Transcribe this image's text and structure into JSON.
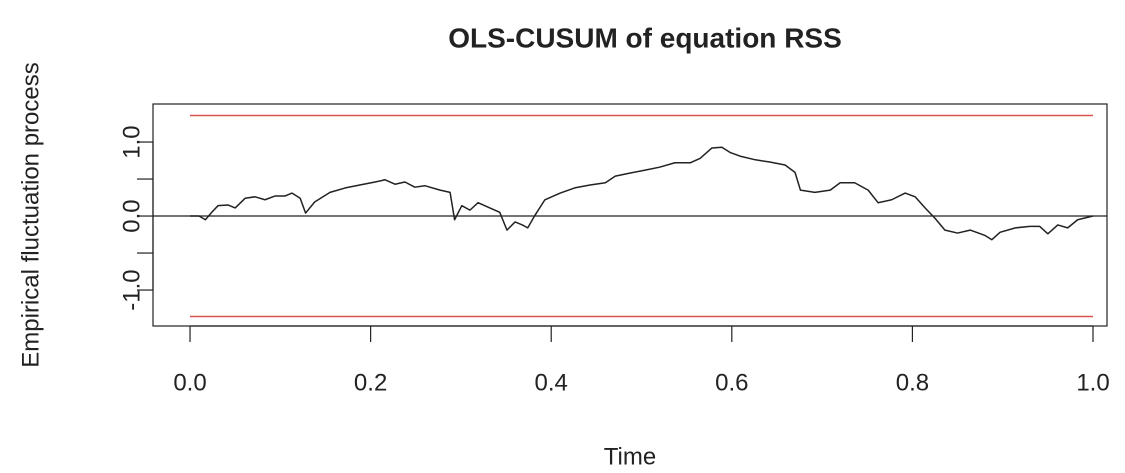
{
  "chart_data": {
    "type": "line",
    "title": "OLS-CUSUM of equation RSS",
    "x_label": "Time",
    "y_label": "Empirical fluctuation process",
    "xlim": [
      -0.041,
      1.0155
    ],
    "ylim": [
      -1.486,
      1.514
    ],
    "xticks": [
      {
        "value": 0,
        "label": "0.0"
      },
      {
        "value": 0.2,
        "label": "0.2"
      },
      {
        "value": 0.4,
        "label": "0.4"
      },
      {
        "value": 0.6,
        "label": "0.6"
      },
      {
        "value": 0.8,
        "label": "0.8"
      },
      {
        "value": 1,
        "label": "1.0"
      }
    ],
    "yticks": [
      {
        "value": -1,
        "label": "-1.0"
      },
      {
        "value": -0.5,
        "label": null
      },
      {
        "value": 0,
        "label": "0.0"
      },
      {
        "value": 0.5,
        "label": null
      },
      {
        "value": 1,
        "label": "1.0"
      }
    ],
    "boundaries": [
      1.358,
      -1.358
    ],
    "boundary_color": "#d9534f",
    "reference_line": 0,
    "x": [
      0,
      0.01,
      0.017,
      0.024,
      0.031,
      0.042,
      0.05,
      0.061,
      0.072,
      0.083,
      0.094,
      0.105,
      0.113,
      0.122,
      0.128,
      0.138,
      0.155,
      0.172,
      0.188,
      0.205,
      0.216,
      0.227,
      0.238,
      0.249,
      0.26,
      0.277,
      0.288,
      0.293,
      0.301,
      0.31,
      0.319,
      0.332,
      0.343,
      0.351,
      0.36,
      0.368,
      0.374,
      0.382,
      0.393,
      0.41,
      0.426,
      0.443,
      0.46,
      0.471,
      0.487,
      0.504,
      0.52,
      0.537,
      0.554,
      0.565,
      0.578,
      0.589,
      0.598,
      0.609,
      0.626,
      0.642,
      0.659,
      0.67,
      0.676,
      0.692,
      0.709,
      0.72,
      0.736,
      0.751,
      0.762,
      0.777,
      0.792,
      0.803,
      0.814,
      0.825,
      0.836,
      0.85,
      0.864,
      0.88,
      0.888,
      0.897,
      0.914,
      0.93,
      0.941,
      0.95,
      0.961,
      0.972,
      0.983,
      1.0
    ],
    "series": [
      {
        "name": "OLS-CUSUM",
        "color": "#222222",
        "values": [
          0,
          0,
          -0.05,
          0.05,
          0.14,
          0.15,
          0.11,
          0.24,
          0.26,
          0.22,
          0.27,
          0.27,
          0.31,
          0.24,
          0.04,
          0.19,
          0.32,
          0.38,
          0.42,
          0.46,
          0.49,
          0.43,
          0.46,
          0.39,
          0.41,
          0.35,
          0.32,
          -0.05,
          0.14,
          0.08,
          0.18,
          0.11,
          0.05,
          -0.19,
          -0.08,
          -0.12,
          -0.16,
          0.01,
          0.22,
          0.31,
          0.38,
          0.42,
          0.45,
          0.54,
          0.58,
          0.62,
          0.66,
          0.72,
          0.72,
          0.78,
          0.92,
          0.93,
          0.86,
          0.81,
          0.76,
          0.73,
          0.69,
          0.59,
          0.35,
          0.32,
          0.35,
          0.45,
          0.45,
          0.35,
          0.18,
          0.22,
          0.31,
          0.26,
          0.11,
          -0.03,
          -0.19,
          -0.23,
          -0.19,
          -0.26,
          -0.32,
          -0.22,
          -0.16,
          -0.14,
          -0.14,
          -0.24,
          -0.12,
          -0.16,
          -0.05,
          0
        ]
      }
    ]
  }
}
